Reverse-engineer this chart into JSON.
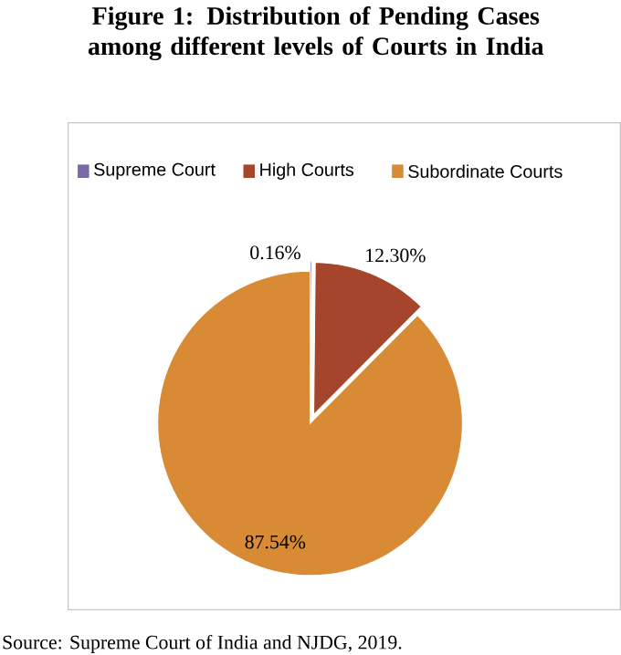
{
  "chart_data": {
    "type": "pie",
    "title": "Figure 1: Distribution of Pending Cases among different levels of Courts in India",
    "categories": [
      "Supreme Court",
      "High Courts",
      "Subordinate Courts"
    ],
    "values": [
      0.16,
      12.3,
      87.54
    ],
    "value_labels": [
      "0.16%",
      "12.30%",
      "87.54%"
    ],
    "colors": [
      "#7b68a6",
      "#a5462c",
      "#d88a35"
    ],
    "legend": "top",
    "annotations": [
      "Source: Supreme Court of India and NJDG, 2019."
    ]
  }
}
